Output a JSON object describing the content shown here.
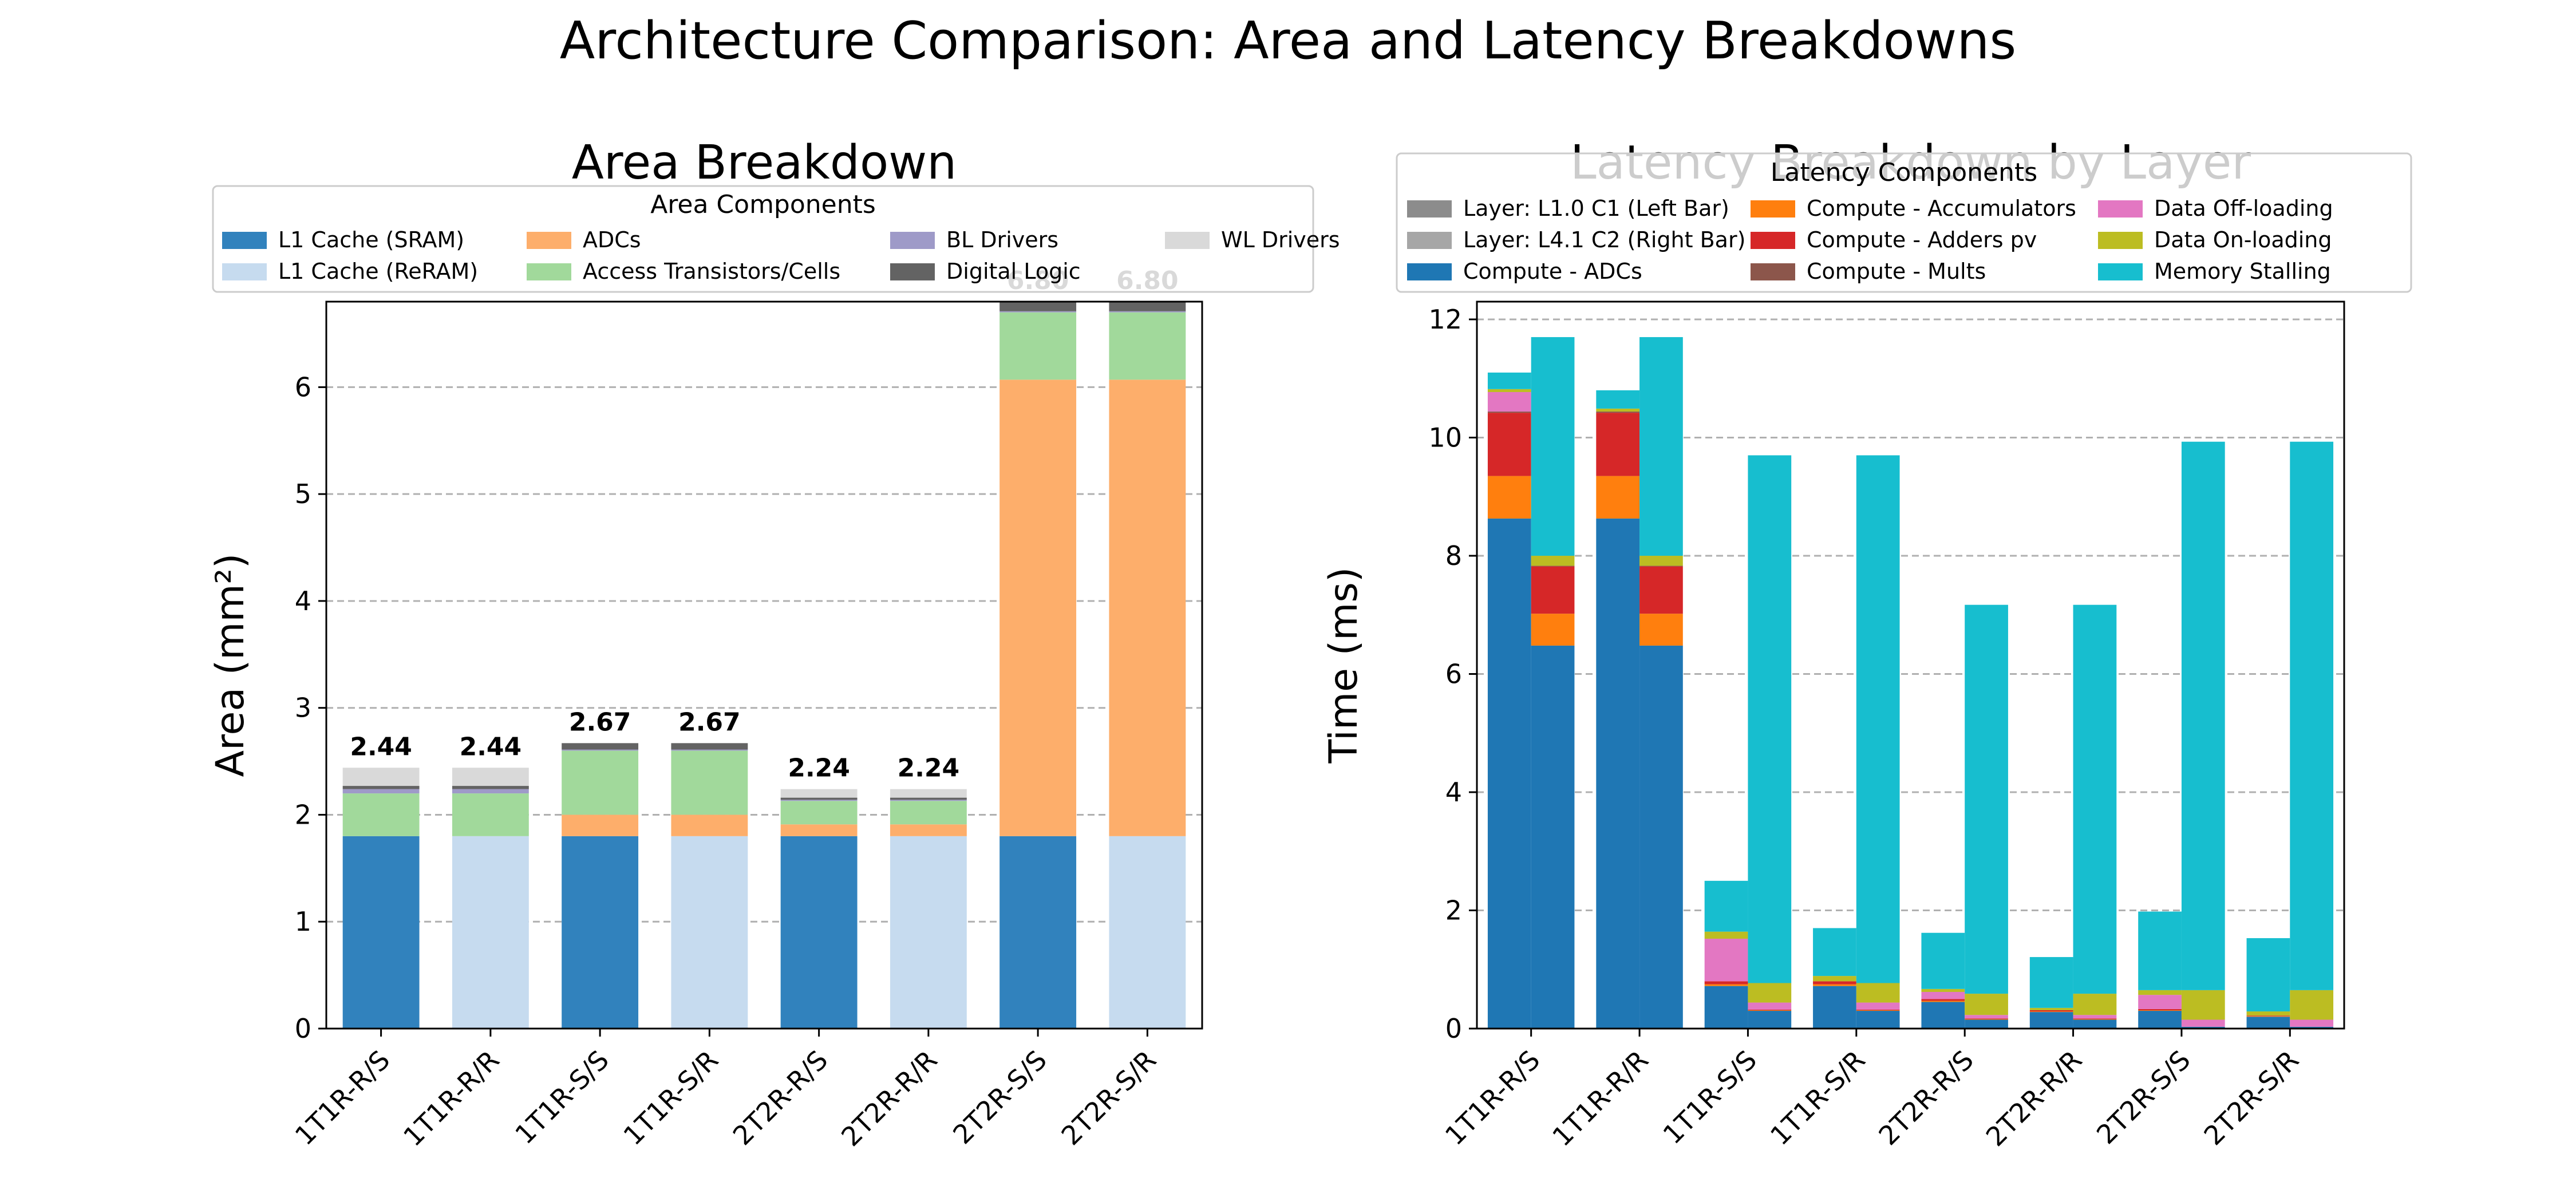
{
  "suptitle": "Architecture Comparison: Area and Latency Breakdowns",
  "chart_data": [
    {
      "type": "bar",
      "stacked": true,
      "title": "Area Breakdown",
      "xlabel": "",
      "ylabel": "Area (mm²)",
      "ylim": [
        0,
        6.8
      ],
      "yticks": [
        0,
        1,
        2,
        3,
        4,
        5,
        6
      ],
      "grid": "y-dashed",
      "legend_title": "Area Components",
      "legend_position": "upper-center",
      "categories": [
        "1T1R-R/S",
        "1T1R-R/R",
        "1T1R-S/S",
        "1T1R-S/R",
        "2T2R-R/S",
        "2T2R-R/R",
        "2T2R-S/S",
        "2T2R-S/R"
      ],
      "series": [
        {
          "name": "L1 Cache (SRAM)",
          "color": "#3182bd",
          "values": [
            1.8,
            0,
            1.8,
            0,
            1.8,
            0,
            1.8,
            0
          ]
        },
        {
          "name": "L1 Cache (ReRAM)",
          "color": "#c6dbef",
          "values": [
            0,
            1.8,
            0,
            1.8,
            0,
            1.8,
            0,
            1.8
          ]
        },
        {
          "name": "ADCs",
          "color": "#fdae6b",
          "values": [
            0.0,
            0.0,
            0.2,
            0.2,
            0.11,
            0.11,
            4.27,
            4.27
          ]
        },
        {
          "name": "Access Transistors/Cells",
          "color": "#a1d99b",
          "values": [
            0.4,
            0.4,
            0.6,
            0.6,
            0.22,
            0.22,
            0.63,
            0.63
          ]
        },
        {
          "name": "BL Drivers",
          "color": "#9e9ac8",
          "values": [
            0.04,
            0.04,
            0.01,
            0.01,
            0.01,
            0.01,
            0.01,
            0.01
          ]
        },
        {
          "name": "Digital Logic",
          "color": "#636363",
          "values": [
            0.03,
            0.03,
            0.06,
            0.06,
            0.02,
            0.02,
            0.09,
            0.09
          ]
        },
        {
          "name": "WL Drivers",
          "color": "#d9d9d9",
          "values": [
            0.17,
            0.17,
            0.0,
            0.0,
            0.08,
            0.08,
            0.0,
            0.0
          ]
        }
      ],
      "totals": [
        "2.44",
        "2.44",
        "2.67",
        "2.67",
        "2.24",
        "2.24",
        "6.80",
        "6.80"
      ]
    },
    {
      "type": "bar",
      "stacked": true,
      "grouped_pairs": true,
      "title": "Latency Breakdown by Layer",
      "xlabel": "",
      "ylabel": "Time (ms)",
      "ylim": [
        0,
        12.3
      ],
      "yticks": [
        0,
        2,
        4,
        6,
        8,
        10,
        12
      ],
      "grid": "y-dashed",
      "legend_title": "Latency Components",
      "legend_position": "upper-center",
      "categories": [
        "1T1R-R/S",
        "1T1R-R/R",
        "1T1R-S/S",
        "1T1R-S/R",
        "2T2R-R/S",
        "2T2R-R/R",
        "2T2R-S/S",
        "2T2R-S/R"
      ],
      "layer_legend": [
        {
          "name": "Layer: L1.0 C1 (Left Bar)",
          "color": "#8c8c8c"
        },
        {
          "name": "Layer: L4.1 C2 (Right Bar)",
          "color": "#a6a6a6"
        }
      ],
      "series": [
        {
          "name": "Compute - ADCs",
          "color": "#1f77b4",
          "left": [
            8.63,
            8.63,
            0.72,
            0.72,
            0.45,
            0.28,
            0.3,
            0.2
          ],
          "right": [
            6.48,
            6.48,
            0.3,
            0.3,
            0.15,
            0.15,
            0.03,
            0.03
          ]
        },
        {
          "name": "Compute - Accumulators",
          "color": "#ff7f0e",
          "left": [
            0.72,
            0.72,
            0.03,
            0.03,
            0.02,
            0.01,
            0.01,
            0.01
          ],
          "right": [
            0.54,
            0.54,
            0.01,
            0.01,
            0.01,
            0.01,
            0.0,
            0.0
          ]
        },
        {
          "name": "Compute - Adders pv",
          "color": "#d62728",
          "left": [
            1.07,
            1.07,
            0.05,
            0.05,
            0.03,
            0.02,
            0.02,
            0.01
          ],
          "right": [
            0.8,
            0.8,
            0.01,
            0.01,
            0.01,
            0.01,
            0.0,
            0.0
          ]
        },
        {
          "name": "Compute - Mults",
          "color": "#8c564b",
          "left": [
            0.02,
            0.02,
            0.0,
            0.0,
            0.0,
            0.0,
            0.0,
            0.0
          ],
          "right": [
            0.01,
            0.01,
            0.0,
            0.0,
            0.0,
            0.0,
            0.0,
            0.0
          ]
        },
        {
          "name": "Data Off-loading",
          "color": "#e377c2",
          "left": [
            0.33,
            0.0,
            0.72,
            0.0,
            0.12,
            0.0,
            0.24,
            0.0
          ],
          "right": [
            0.0,
            0.0,
            0.12,
            0.12,
            0.06,
            0.06,
            0.12,
            0.12
          ]
        },
        {
          "name": "Data On-loading",
          "color": "#bcbd22",
          "left": [
            0.05,
            0.05,
            0.12,
            0.09,
            0.05,
            0.04,
            0.08,
            0.07
          ],
          "right": [
            0.17,
            0.17,
            0.33,
            0.33,
            0.36,
            0.36,
            0.5,
            0.5
          ]
        },
        {
          "name": "Memory Stalling",
          "color": "#17becf",
          "left": [
            0.28,
            0.31,
            0.86,
            0.81,
            0.95,
            0.86,
            1.33,
            1.24
          ],
          "right": [
            3.7,
            3.7,
            8.93,
            8.93,
            6.58,
            6.58,
            9.28,
            9.28
          ]
        }
      ]
    }
  ]
}
